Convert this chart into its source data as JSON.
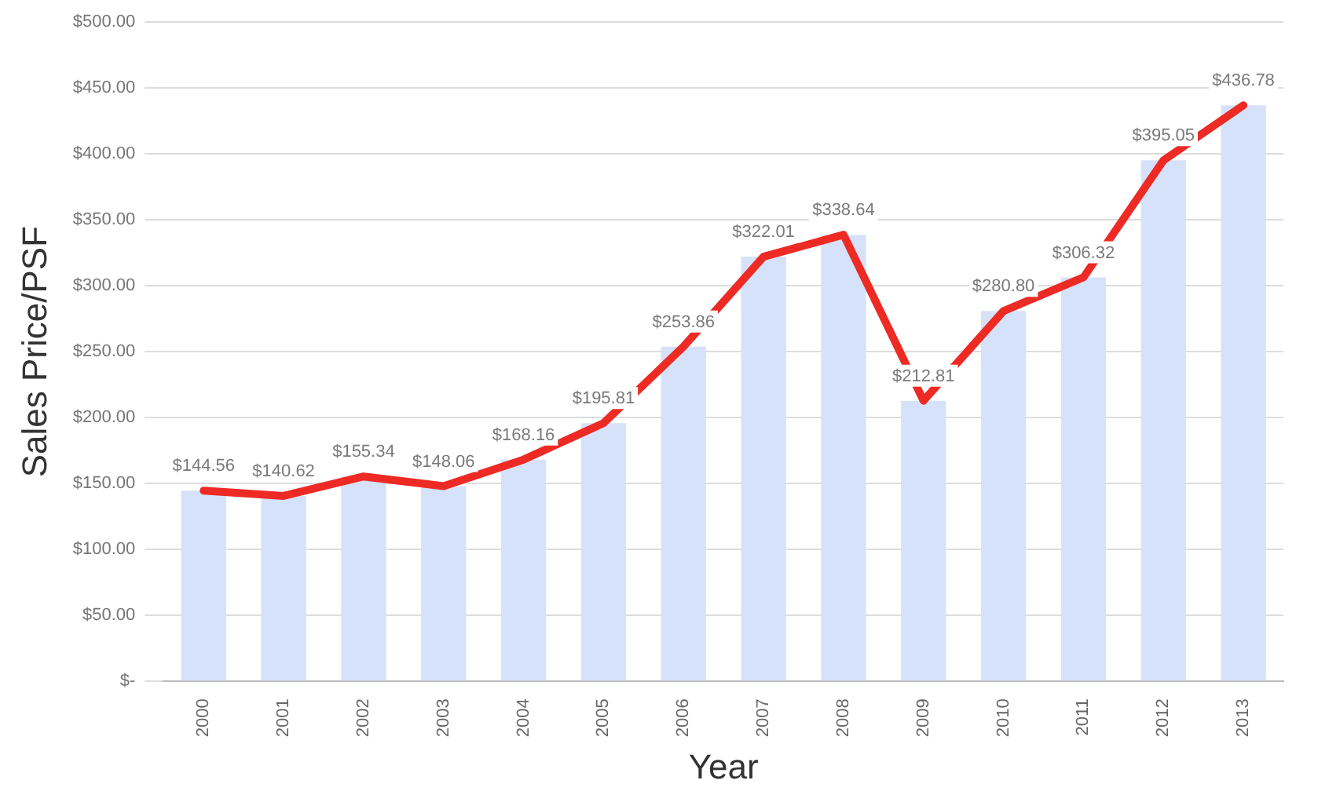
{
  "chart_data": {
    "type": "bar",
    "xlabel": "Year",
    "ylabel": "Sales Price/PSF",
    "categories": [
      "2000",
      "2001",
      "2002",
      "2003",
      "2004",
      "2005",
      "2006",
      "2007",
      "2008",
      "2009",
      "2010",
      "2011",
      "2012",
      "2013"
    ],
    "series": [
      {
        "color": "#d6e2fa",
        "values": [
          144.56,
          140.62,
          155.34,
          148.06,
          168.16,
          195.81,
          253.86,
          322.01,
          338.64,
          212.81,
          280.8,
          306.32,
          395.05,
          436.78
        ],
        "value_labels": [
          "$144.56",
          "$140.62",
          "$155.34",
          "$148.06",
          "$168.16",
          "$195.81",
          "$253.86",
          "$322.01",
          "$338.64",
          "$212.81",
          "$280.80",
          "$306.32",
          "$395.05",
          "$436.78"
        ]
      },
      {
        "type": "line",
        "color": "#ee2a24",
        "values": [
          144.56,
          140.62,
          155.34,
          148.06,
          168.16,
          195.81,
          253.86,
          322.01,
          338.64,
          212.81,
          280.8,
          306.32,
          395.05,
          436.78
        ]
      }
    ],
    "ylim": [
      0,
      500
    ],
    "yticks": [
      {
        "value": 0,
        "label": "$-"
      },
      {
        "value": 50,
        "label": "$50.00"
      },
      {
        "value": 100,
        "label": "$100.00"
      },
      {
        "value": 150,
        "label": "$150.00"
      },
      {
        "value": 200,
        "label": "$200.00"
      },
      {
        "value": 250,
        "label": "$250.00"
      },
      {
        "value": 300,
        "label": "$300.00"
      },
      {
        "value": 350,
        "label": "$350.00"
      },
      {
        "value": 400,
        "label": "$400.00"
      },
      {
        "value": 450,
        "label": "$450.00"
      },
      {
        "value": 500,
        "label": "$500.00"
      }
    ],
    "grid": "y",
    "legend": false,
    "marker": "none",
    "line_style": "solid"
  }
}
